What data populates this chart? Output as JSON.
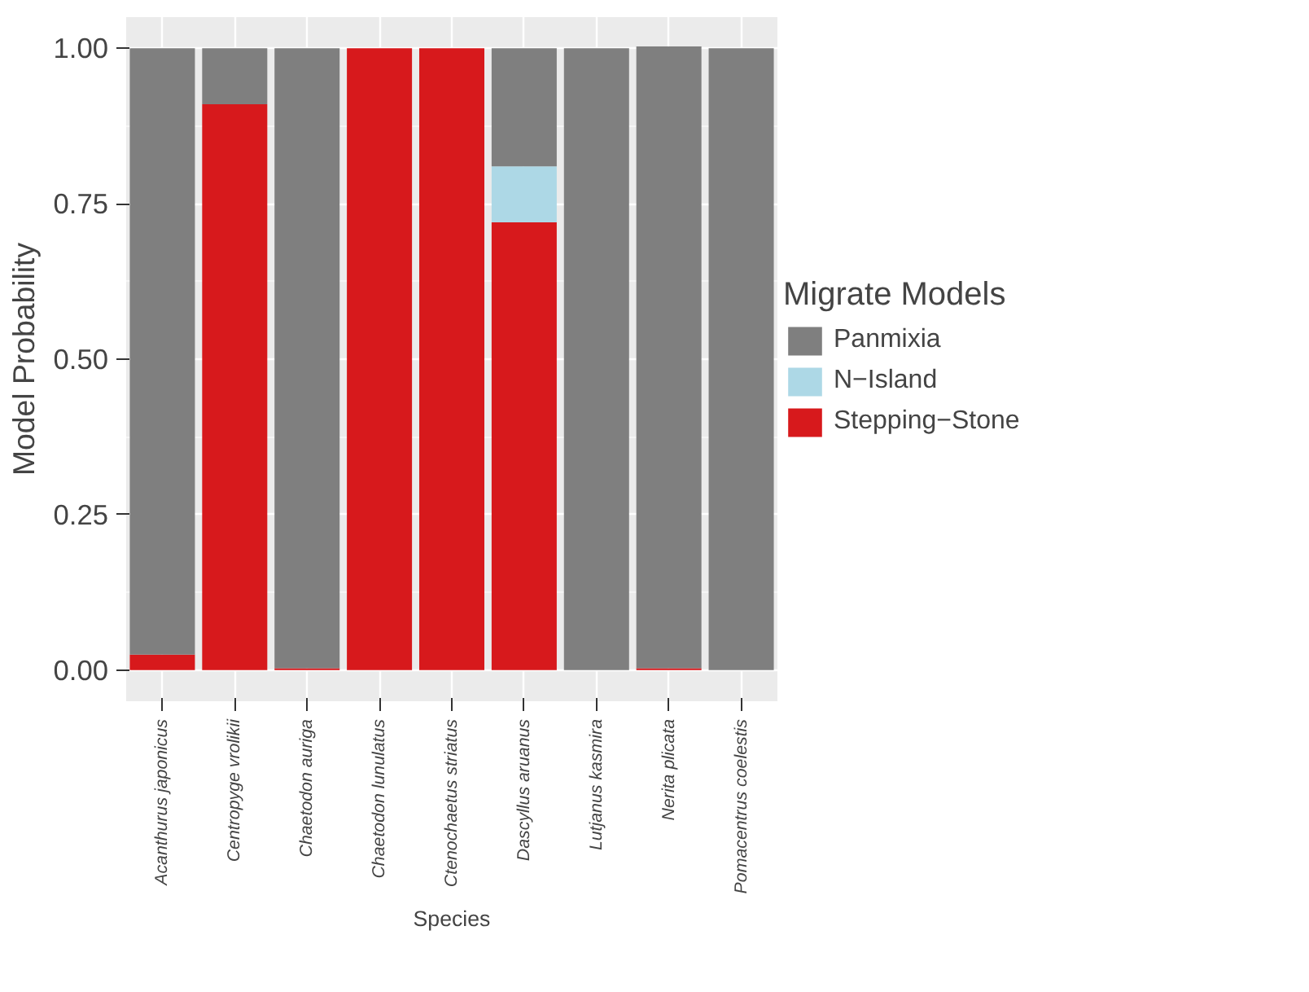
{
  "chart_data": {
    "type": "bar",
    "stacked": true,
    "xlabel": "Species",
    "ylabel": "Model Probability",
    "legend_title": "Migrate Models",
    "categories": [
      "Acanthurus japonicus",
      "Centropyge vrolikii",
      "Chaetodon auriga",
      "Chaetodon lunulatus",
      "Ctenochaetus striatus",
      "Dascyllus aruanus",
      "Lutjanus kasmira",
      "Nerita plicata",
      "Pomacentrus coelestis"
    ],
    "series": [
      {
        "name": "Stepping−Stone",
        "color": "#d7191c",
        "values": [
          0.025,
          0.91,
          0.003,
          1.0,
          1.0,
          0.72,
          0,
          0.003,
          0
        ]
      },
      {
        "name": "N−Island",
        "color": "#add8e6",
        "values": [
          0,
          0,
          0,
          0,
          0,
          0.09,
          0,
          0,
          0
        ]
      },
      {
        "name": "Panmixia",
        "color": "#7f7f7f",
        "values": [
          0.975,
          0.09,
          0.997,
          0,
          0,
          0.19,
          1.0,
          1.0,
          1.0
        ]
      }
    ],
    "ylim": [
      -0.05,
      1.05
    ],
    "yticks": [
      {
        "value": 0,
        "label": "0.00"
      },
      {
        "value": 0.25,
        "label": "0.25"
      },
      {
        "value": 0.5,
        "label": "0.50"
      },
      {
        "value": 0.75,
        "label": "0.75"
      },
      {
        "value": 1,
        "label": "1.00"
      }
    ],
    "grid": true,
    "legend": "right"
  }
}
